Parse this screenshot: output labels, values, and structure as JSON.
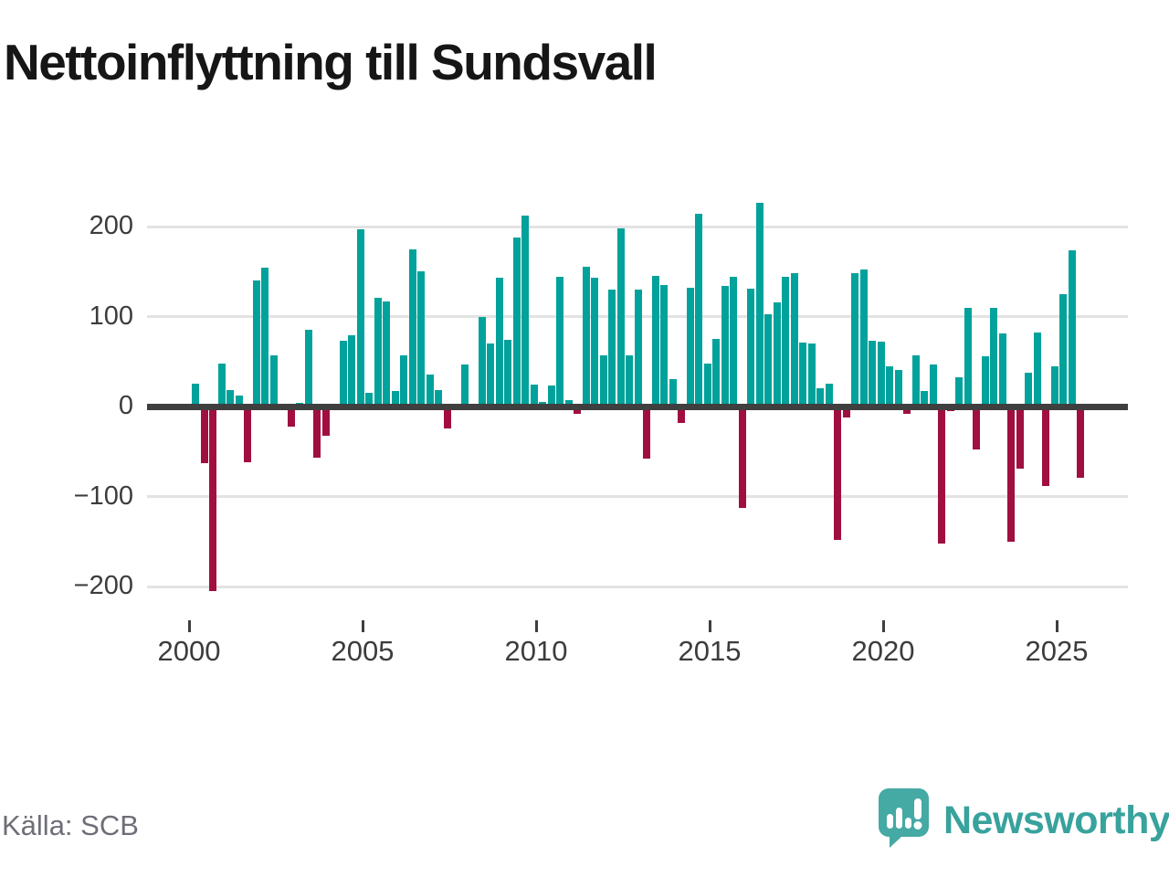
{
  "title": "Nettoinflyttning till Sundsvall",
  "footer": {
    "source": "Källa: SCB",
    "brand": "Newsworthy"
  },
  "chart_data": {
    "type": "bar",
    "title": "Nettoinflyttning till Sundsvall",
    "x_unit": "quarter",
    "ylabel": "",
    "xlabel": "",
    "ylim": [
      -230,
      245
    ],
    "grid": true,
    "legend_position": "none",
    "positive_color": "#00a29b",
    "negative_color": "#a00f40",
    "y_ticks": [
      {
        "value": 200,
        "label": "200"
      },
      {
        "value": 100,
        "label": "100"
      },
      {
        "value": 0,
        "label": "0"
      },
      {
        "value": -100,
        "label": "−100"
      },
      {
        "value": -200,
        "label": "−200"
      }
    ],
    "x_ticks": [
      {
        "value": 2000,
        "label": "2000"
      },
      {
        "value": 2005,
        "label": "2005"
      },
      {
        "value": 2010,
        "label": "2010"
      },
      {
        "value": 2015,
        "label": "2015"
      },
      {
        "value": 2020,
        "label": "2020"
      },
      {
        "value": 2025,
        "label": "2025"
      }
    ],
    "years": [
      {
        "year": 2000,
        "values": [
          25,
          -63,
          -205,
          48
        ]
      },
      {
        "year": 2001,
        "values": [
          18,
          12,
          -62,
          140
        ]
      },
      {
        "year": 2002,
        "values": [
          154,
          57,
          0,
          -22
        ]
      },
      {
        "year": 2003,
        "values": [
          4,
          85,
          -57,
          -32
        ]
      },
      {
        "year": 2004,
        "values": [
          0,
          73,
          79,
          197
        ]
      },
      {
        "year": 2005,
        "values": [
          15,
          121,
          117,
          17
        ]
      },
      {
        "year": 2006,
        "values": [
          57,
          175,
          150,
          36
        ]
      },
      {
        "year": 2007,
        "values": [
          18,
          -24,
          0,
          47
        ]
      },
      {
        "year": 2008,
        "values": [
          0,
          100,
          70,
          143
        ]
      },
      {
        "year": 2009,
        "values": [
          74,
          188,
          212,
          24
        ]
      },
      {
        "year": 2010,
        "values": [
          5,
          23,
          144,
          7
        ]
      },
      {
        "year": 2011,
        "values": [
          -8,
          155,
          143,
          57
        ]
      },
      {
        "year": 2012,
        "values": [
          130,
          198,
          57,
          130
        ]
      },
      {
        "year": 2013,
        "values": [
          -58,
          145,
          135,
          30
        ]
      },
      {
        "year": 2014,
        "values": [
          -18,
          132,
          214,
          48
        ]
      },
      {
        "year": 2015,
        "values": [
          75,
          134,
          144,
          -113
        ]
      },
      {
        "year": 2016,
        "values": [
          131,
          226,
          103,
          116
        ]
      },
      {
        "year": 2017,
        "values": [
          144,
          148,
          71,
          70
        ]
      },
      {
        "year": 2018,
        "values": [
          20,
          25,
          -148,
          -12
        ]
      },
      {
        "year": 2019,
        "values": [
          148,
          152,
          73,
          72
        ]
      },
      {
        "year": 2020,
        "values": [
          45,
          41,
          -8,
          57
        ]
      },
      {
        "year": 2021,
        "values": [
          17,
          47,
          -152,
          -5
        ]
      },
      {
        "year": 2022,
        "values": [
          32,
          110,
          -48,
          56
        ]
      },
      {
        "year": 2023,
        "values": [
          110,
          81,
          -150,
          -69
        ]
      },
      {
        "year": 2024,
        "values": [
          38,
          82,
          -88,
          45
        ]
      },
      {
        "year": 2025,
        "values": [
          125,
          174,
          -79
        ]
      }
    ]
  }
}
